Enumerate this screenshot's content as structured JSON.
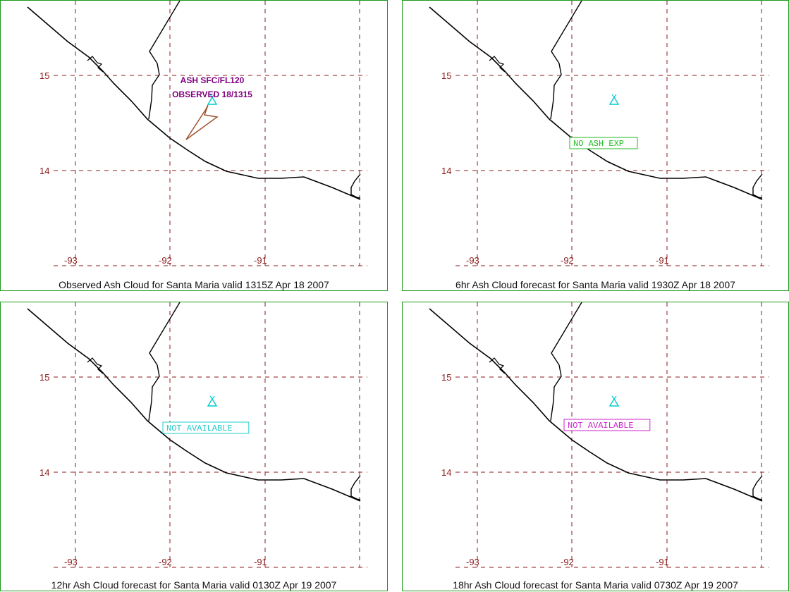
{
  "panels": [
    {
      "caption": "Observed Ash Cloud for Santa  Maria valid 1315Z Apr 18 2007",
      "status_box": null,
      "annotation": {
        "line1": "ASH SFC/FL120",
        "line2": "OBSERVED 18/1315"
      },
      "has_ash_polygon": true
    },
    {
      "caption": "6hr Ash Cloud forecast for Santa  Maria valid 1930Z Apr 18 2007",
      "status_box": {
        "text": "NO ASH EXP",
        "color": "#22bb22"
      },
      "annotation": null,
      "has_ash_polygon": false
    },
    {
      "caption": "12hr Ash Cloud forecast for Santa  Maria valid 0130Z Apr 19 2007",
      "status_box": {
        "text": "NOT AVAILABLE",
        "color": "#22cccc"
      },
      "annotation": null,
      "has_ash_polygon": false
    },
    {
      "caption": "18hr Ash Cloud forecast for Santa  Maria valid 0730Z Apr 19 2007",
      "status_box": {
        "text": "NOT AVAILABLE",
        "color": "#cc22cc"
      },
      "annotation": null,
      "has_ash_polygon": false
    }
  ],
  "grid": {
    "lat_labels": [
      "15",
      "14"
    ],
    "lon_labels": [
      "-93",
      "-92",
      "-91"
    ],
    "grid_color": "#8b1a1a",
    "label_color": "#8b1a1a"
  },
  "colors": {
    "coast": "#000000",
    "border": "#1a9a1a",
    "volcano": "#00cccc",
    "ash_polygon": "#a0522d",
    "annotation_text": "#800080"
  },
  "icons": {
    "volcano": "volcano-icon"
  }
}
